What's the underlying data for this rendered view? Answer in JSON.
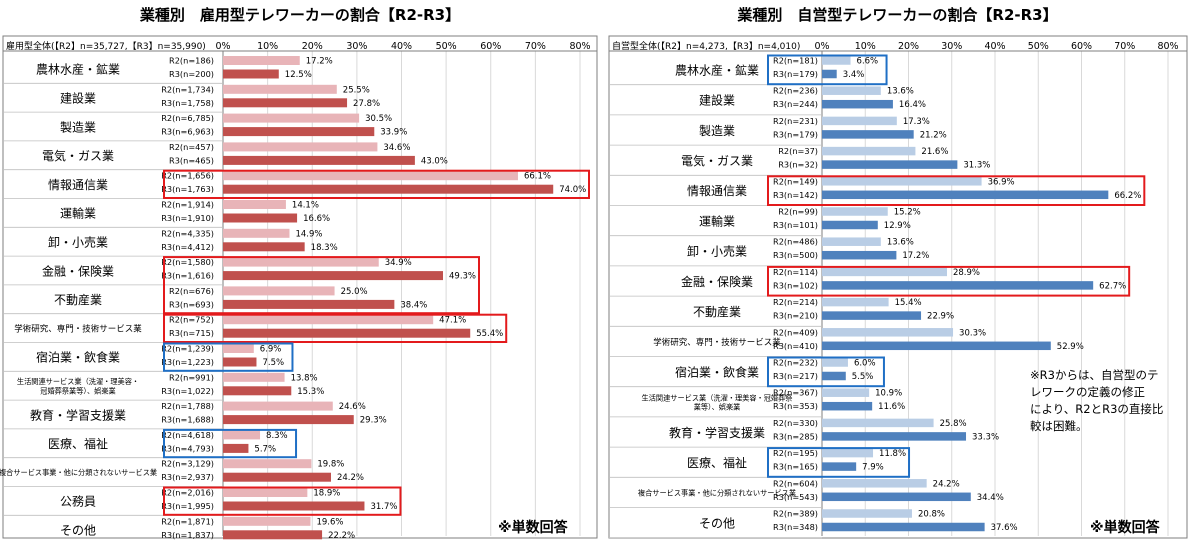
{
  "chart_data": [
    {
      "type": "bar",
      "title": "業種別　雇用型テレワーカーの割合【R2-R3】",
      "header_label": "雇用型全体(【R2】n=35,727,【R3】n=35,990)",
      "xlim": [
        0,
        80
      ],
      "xticks": [
        "0%",
        "10%",
        "20%",
        "30%",
        "40%",
        "50%",
        "60%",
        "70%",
        "80%"
      ],
      "series": [
        {
          "name": "R2",
          "color": "#e8b4b8"
        },
        {
          "name": "R3",
          "color": "#c0504d"
        }
      ],
      "categories": [
        {
          "label": "農林水産・鉱業",
          "size": "md",
          "r2_n": "R2(n=186)",
          "r3_n": "R3(n=200)",
          "r2": 17.2,
          "r3": 12.5
        },
        {
          "label": "建設業",
          "size": "md",
          "r2_n": "R2(n=1,734)",
          "r3_n": "R3(n=1,758)",
          "r2": 25.5,
          "r3": 27.8
        },
        {
          "label": "製造業",
          "size": "md",
          "r2_n": "R2(n=6,785)",
          "r3_n": "R3(n=6,963)",
          "r2": 30.5,
          "r3": 33.9
        },
        {
          "label": "電気・ガス業",
          "size": "md",
          "r2_n": "R2(n=457)",
          "r3_n": "R3(n=465)",
          "r2": 34.6,
          "r3": 43.0
        },
        {
          "label": "情報通信業",
          "size": "md",
          "r2_n": "R2(n=1,656)",
          "r3_n": "R3(n=1,763)",
          "r2": 66.1,
          "r3": 74.0
        },
        {
          "label": "運輸業",
          "size": "md",
          "r2_n": "R2(n=1,914)",
          "r3_n": "R3(n=1,910)",
          "r2": 14.1,
          "r3": 16.6
        },
        {
          "label": "卸・小売業",
          "size": "md",
          "r2_n": "R2(n=4,335)",
          "r3_n": "R3(n=4,412)",
          "r2": 14.9,
          "r3": 18.3
        },
        {
          "label": "金融・保険業",
          "size": "md",
          "r2_n": "R2(n=1,580)",
          "r3_n": "R3(n=1,616)",
          "r2": 34.9,
          "r3": 49.3
        },
        {
          "label": "不動産業",
          "size": "md",
          "r2_n": "R2(n=676)",
          "r3_n": "R3(n=693)",
          "r2": 25.0,
          "r3": 38.4
        },
        {
          "label": "学術研究、専門・技術サービス業",
          "size": "sm",
          "r2_n": "R2(n=752)",
          "r3_n": "R3(n=715)",
          "r2": 47.1,
          "r3": 55.4
        },
        {
          "label": "宿泊業・飲食業",
          "size": "md",
          "r2_n": "R2(n=1,239)",
          "r3_n": "R3(n=1,223)",
          "r2": 6.9,
          "r3": 7.5
        },
        {
          "label": "生活関連サービス業（洗濯・理美容・\n冠婚葬祭業等）、娯楽業",
          "size": "xs",
          "r2_n": "R2(n=991)",
          "r3_n": "R3(n=1,022)",
          "r2": 13.8,
          "r3": 15.3
        },
        {
          "label": "教育・学習支援業",
          "size": "md",
          "r2_n": "R2(n=1,788)",
          "r3_n": "R3(n=1,688)",
          "r2": 24.6,
          "r3": 29.3
        },
        {
          "label": "医療、福祉",
          "size": "md",
          "r2_n": "R2(n=4,618)",
          "r3_n": "R3(n=4,793)",
          "r2": 8.3,
          "r3": 5.7
        },
        {
          "label": "複合サービス事業・他に分類されないサービス業",
          "size": "xs",
          "r2_n": "R2(n=3,129)",
          "r3_n": "R3(n=2,937)",
          "r2": 19.8,
          "r3": 24.2
        },
        {
          "label": "公務員",
          "size": "md",
          "r2_n": "R2(n=2,016)",
          "r3_n": "R3(n=1,995)",
          "r2": 18.9,
          "r3": 31.7
        },
        {
          "label": "その他",
          "size": "md",
          "r2_n": "R2(n=1,871)",
          "r3_n": "R3(n=1,837)",
          "r2": 19.6,
          "r3": 22.2
        }
      ],
      "highlights": [
        {
          "color": "red",
          "from": 4,
          "to": 4
        },
        {
          "color": "red",
          "from": 7,
          "to": 8
        },
        {
          "color": "red",
          "from": 9,
          "to": 9
        },
        {
          "color": "blue",
          "from": 10,
          "to": 10
        },
        {
          "color": "blue",
          "from": 13,
          "to": 13
        },
        {
          "color": "red",
          "from": 15,
          "to": 15
        }
      ],
      "footer": "※単数回答"
    },
    {
      "type": "bar",
      "title": "業種別　自営型テレワーカーの割合【R2-R3】",
      "header_label": "自営型全体(【R2】n=4,273,【R3】n=4,010)",
      "xlim": [
        0,
        80
      ],
      "xticks": [
        "0%",
        "10%",
        "20%",
        "30%",
        "40%",
        "50%",
        "60%",
        "70%",
        "80%"
      ],
      "series": [
        {
          "name": "R2",
          "color": "#b9cde5"
        },
        {
          "name": "R3",
          "color": "#4f81bd"
        }
      ],
      "categories": [
        {
          "label": "農林水産・鉱業",
          "size": "md",
          "r2_n": "R2(n=181)",
          "r3_n": "R3(n=179)",
          "r2": 6.6,
          "r3": 3.4
        },
        {
          "label": "建設業",
          "size": "md",
          "r2_n": "R2(n=236)",
          "r3_n": "R3(n=244)",
          "r2": 13.6,
          "r3": 16.4
        },
        {
          "label": "製造業",
          "size": "md",
          "r2_n": "R2(n=231)",
          "r3_n": "R3(n=179)",
          "r2": 17.3,
          "r3": 21.2
        },
        {
          "label": "電気・ガス業",
          "size": "md",
          "r2_n": "R2(n=37)",
          "r3_n": "R3(n=32)",
          "r2": 21.6,
          "r3": 31.3
        },
        {
          "label": "情報通信業",
          "size": "md",
          "r2_n": "R2(n=149)",
          "r3_n": "R3(n=142)",
          "r2": 36.9,
          "r3": 66.2
        },
        {
          "label": "運輸業",
          "size": "md",
          "r2_n": "R2(n=99)",
          "r3_n": "R3(n=101)",
          "r2": 15.2,
          "r3": 12.9
        },
        {
          "label": "卸・小売業",
          "size": "md",
          "r2_n": "R2(n=486)",
          "r3_n": "R3(n=500)",
          "r2": 13.6,
          "r3": 17.2
        },
        {
          "label": "金融・保険業",
          "size": "md",
          "r2_n": "R2(n=114)",
          "r3_n": "R3(n=102)",
          "r2": 28.9,
          "r3": 62.7
        },
        {
          "label": "不動産業",
          "size": "md",
          "r2_n": "R2(n=214)",
          "r3_n": "R3(n=210)",
          "r2": 15.4,
          "r3": 22.9
        },
        {
          "label": "学術研究、専門・技術サービス業",
          "size": "sm",
          "r2_n": "R2(n=409)",
          "r3_n": "R3(n=410)",
          "r2": 30.3,
          "r3": 52.9
        },
        {
          "label": "宿泊業・飲食業",
          "size": "md",
          "r2_n": "R2(n=232)",
          "r3_n": "R3(n=217)",
          "r2": 6.0,
          "r3": 5.5
        },
        {
          "label": "生活関連サービス業（洗濯・理美容・冠婚葬祭\n業等）、娯楽業",
          "size": "xs",
          "r2_n": "R2(n=367)",
          "r3_n": "R3(n=353)",
          "r2": 10.9,
          "r3": 11.6
        },
        {
          "label": "教育・学習支援業",
          "size": "md",
          "r2_n": "R2(n=330)",
          "r3_n": "R3(n=285)",
          "r2": 25.8,
          "r3": 33.3
        },
        {
          "label": "医療、福祉",
          "size": "md",
          "r2_n": "R2(n=195)",
          "r3_n": "R3(n=165)",
          "r2": 11.8,
          "r3": 7.9
        },
        {
          "label": "複合サービス事業・他に分類されないサービス業",
          "size": "xs",
          "r2_n": "R2(n=604)",
          "r3_n": "R3(n=543)",
          "r2": 24.2,
          "r3": 34.4
        },
        {
          "label": "その他",
          "size": "md",
          "r2_n": "R2(n=389)",
          "r3_n": "R3(n=348)",
          "r2": 20.8,
          "r3": 37.6
        }
      ],
      "highlights": [
        {
          "color": "blue",
          "from": 0,
          "to": 0
        },
        {
          "color": "red",
          "from": 4,
          "to": 4
        },
        {
          "color": "red",
          "from": 7,
          "to": 7
        },
        {
          "color": "blue",
          "from": 10,
          "to": 10
        },
        {
          "color": "blue",
          "from": 13,
          "to": 13
        }
      ],
      "note": "※R3からは、自営型のテ\nレワークの定義の修正\nにより、R2とR3の直接比\n較は困難。",
      "footer": "※単数回答"
    }
  ]
}
